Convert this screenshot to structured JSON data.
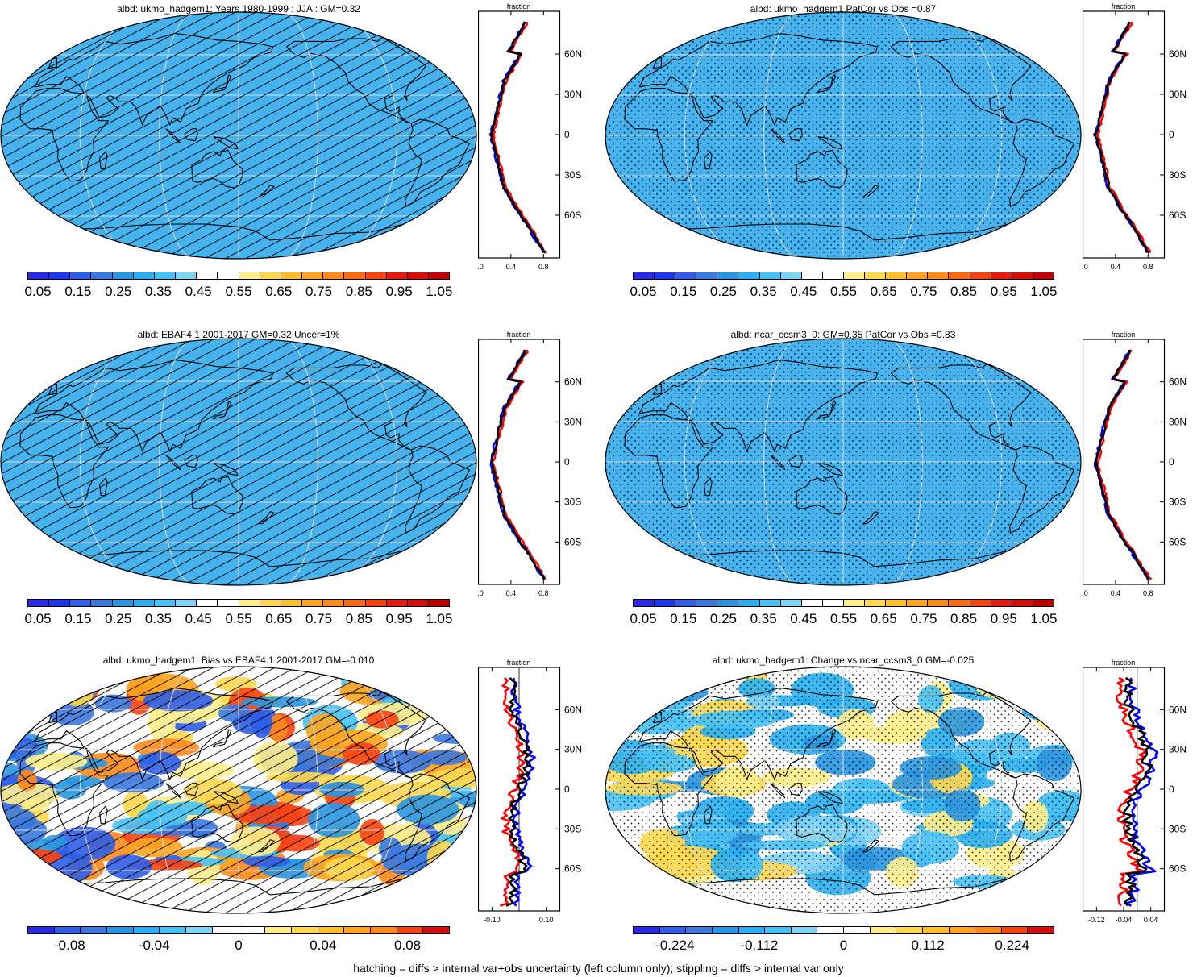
{
  "footer": "hatching = diffs > internal var+obs uncertainty (left column only); stippling = diffs > internal var only",
  "colors": {
    "abs_scale": [
      "#2a2ae6",
      "#1f36f0",
      "#2f5ee8",
      "#3b78e0",
      "#2a96e0",
      "#2ab0f0",
      "#47c2f5",
      "#7fd3f7",
      "#ffffff",
      "#ffffff",
      "#ffee8a",
      "#ffd84e",
      "#ffc12a",
      "#ffa51f",
      "#ff8a18",
      "#ff6a10",
      "#f94212",
      "#e81b12",
      "#d80b0b",
      "#c00000"
    ],
    "diff_scale": [
      "#2a2ae6",
      "#2f5ee8",
      "#3b78e0",
      "#2a96e0",
      "#2ab0f0",
      "#47c2f5",
      "#7fd3f7",
      "#ffffff",
      "#ffffff",
      "#ffee8a",
      "#ffd84e",
      "#ffc12a",
      "#ffa51f",
      "#ff8a18",
      "#f94212",
      "#d80b0b"
    ],
    "line_obs": "#ff0000",
    "line_blue": "#0000ff",
    "line_black": "#000000"
  },
  "panels": [
    {
      "title": "albd: ukmo_hadgem1: Years 1980-1999 : JJA : GM=0.32",
      "map_type": "absolute",
      "overlay": "hatching",
      "colorbar_scale": "abs_scale",
      "colorbar_labels": [
        "0.05",
        "0.15",
        "0.25",
        "0.35",
        "0.45",
        "0.55",
        "0.65",
        "0.75",
        "0.85",
        "0.95",
        "1.05"
      ],
      "profile": {
        "title": "fraction",
        "xticks": [
          "0.0",
          "0.4",
          "0.8"
        ],
        "xlim": [
          0.0,
          1.0
        ],
        "lat_labels": [
          "60N",
          "30N",
          "0",
          "30S",
          "60S"
        ]
      }
    },
    {
      "title": "albd: ukmo_hadgem1 PatCor vs Obs =0.87",
      "map_type": "absolute",
      "overlay": "stippling",
      "colorbar_scale": "abs_scale",
      "colorbar_labels": [
        "0.05",
        "0.15",
        "0.25",
        "0.35",
        "0.45",
        "0.55",
        "0.65",
        "0.75",
        "0.85",
        "0.95",
        "1.05"
      ],
      "profile": {
        "title": "fraction",
        "xticks": [
          "0.0",
          "0.4",
          "0.8"
        ],
        "xlim": [
          0.0,
          1.0
        ],
        "lat_labels": [
          "60N",
          "30N",
          "0",
          "30S",
          "60S"
        ]
      }
    },
    {
      "title": "albd: EBAF4.1 2001-2017 GM=0.32 Uncer=1%",
      "map_type": "absolute_obs",
      "overlay": "hatching",
      "colorbar_scale": "abs_scale",
      "colorbar_labels": [
        "0.05",
        "0.15",
        "0.25",
        "0.35",
        "0.45",
        "0.55",
        "0.65",
        "0.75",
        "0.85",
        "0.95",
        "1.05"
      ],
      "profile": {
        "title": "fraction",
        "xticks": [
          "0.0",
          "0.4",
          "0.8"
        ],
        "xlim": [
          0.0,
          1.0
        ],
        "lat_labels": [
          "60N",
          "30N",
          "0",
          "30S",
          "60S"
        ]
      }
    },
    {
      "title": "albd: ncar_ccsm3_0: GM=0.35 PatCor vs Obs =0.83",
      "map_type": "absolute",
      "overlay": "stippling",
      "colorbar_scale": "abs_scale",
      "colorbar_labels": [
        "0.05",
        "0.15",
        "0.25",
        "0.35",
        "0.45",
        "0.55",
        "0.65",
        "0.75",
        "0.85",
        "0.95",
        "1.05"
      ],
      "profile": {
        "title": "fraction",
        "xticks": [
          "0.0",
          "0.4",
          "0.8"
        ],
        "xlim": [
          0.0,
          1.0
        ],
        "lat_labels": [
          "60N",
          "30N",
          "0",
          "30S",
          "60S"
        ]
      }
    },
    {
      "title": "albd: ukmo_hadgem1: Bias vs EBAF4.1 2001-2017 GM=-0.010",
      "map_type": "bias",
      "overlay": "hatching",
      "colorbar_scale": "diff_scale",
      "colorbar_labels": [
        "-0.08",
        "-0.04",
        "0",
        "0.04",
        "0.08"
      ],
      "profile": {
        "title": "fraction",
        "xticks": [
          "-0.10",
          "0.10"
        ],
        "xlim": [
          -0.15,
          0.15
        ],
        "lat_labels": [
          "60N",
          "30N",
          "0",
          "30S",
          "60S"
        ]
      }
    },
    {
      "title": "albd: ukmo_hadgem1: Change vs ncar_ccsm3_0 GM=-0.025",
      "map_type": "change",
      "overlay": "stippling",
      "colorbar_scale": "diff_scale",
      "colorbar_labels": [
        "-0.224",
        "-0.112",
        "0",
        "0.112",
        "0.224"
      ],
      "profile": {
        "title": "fraction",
        "xticks": [
          "-0.12",
          "-0.04",
          "0.04"
        ],
        "xlim": [
          -0.16,
          0.08
        ],
        "lat_labels": [
          "60N",
          "30N",
          "0",
          "30S",
          "60S"
        ]
      }
    }
  ]
}
